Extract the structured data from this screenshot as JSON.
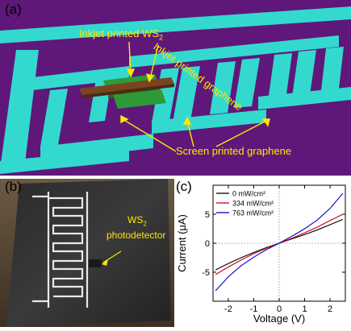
{
  "figure": {
    "panel_a": {
      "letter": "(a)",
      "labels": {
        "ws2": "Inkjet printed WS",
        "ws2_sub": "2",
        "graphene_inkjet": "Inkjet printed graphene",
        "graphene_screen": "Screen printed graphene"
      },
      "colors": {
        "background": "#5f177a",
        "electrode": "#33d9cf",
        "ws2": "#2e9a36",
        "graphene": "#7a4420",
        "label": "#ffe600"
      }
    },
    "panel_b": {
      "letter": "(b)",
      "label_line1": "WS",
      "label_sub": "2",
      "label_line2": "photodetector"
    },
    "panel_c": {
      "letter": "(c)"
    }
  },
  "chart_data": {
    "type": "line",
    "xlabel": "Voltage (V)",
    "ylabel": "Current (μA)",
    "xlim": [
      -2.6,
      2.6
    ],
    "ylim": [
      -10,
      10
    ],
    "xticks": [
      -2,
      -1,
      0,
      1,
      2
    ],
    "yticks": [
      -5,
      0,
      5
    ],
    "grid": false,
    "reference_lines": "dotted x=0 and y=0",
    "legend_position": "top-left",
    "series": [
      {
        "name": "0 mW/cm²",
        "color": "#000000",
        "x": [
          -2.5,
          -2,
          -1.5,
          -1,
          -0.5,
          0,
          0.5,
          1,
          1.5,
          2,
          2.5
        ],
        "y": [
          -4.6,
          -3.5,
          -2.5,
          -1.6,
          -0.75,
          0,
          0.75,
          1.5,
          2.3,
          3.2,
          4.1
        ]
      },
      {
        "name": "334 mW/cm²",
        "color": "#cc0000",
        "x": [
          -2.5,
          -2,
          -1.5,
          -1,
          -0.5,
          0,
          0.5,
          1,
          1.5,
          2,
          2.5
        ],
        "y": [
          -5.4,
          -4.1,
          -2.9,
          -1.8,
          -0.85,
          0,
          0.85,
          1.8,
          2.8,
          3.9,
          5.0
        ]
      },
      {
        "name": "763 mW/cm²",
        "color": "#0000cc",
        "x": [
          -2.5,
          -2,
          -1.5,
          -1,
          -0.5,
          0,
          0.5,
          1,
          1.5,
          2,
          2.5
        ],
        "y": [
          -8.2,
          -5.8,
          -3.9,
          -2.4,
          -1.1,
          0,
          1.2,
          2.5,
          4.0,
          6.0,
          8.6
        ]
      }
    ]
  }
}
